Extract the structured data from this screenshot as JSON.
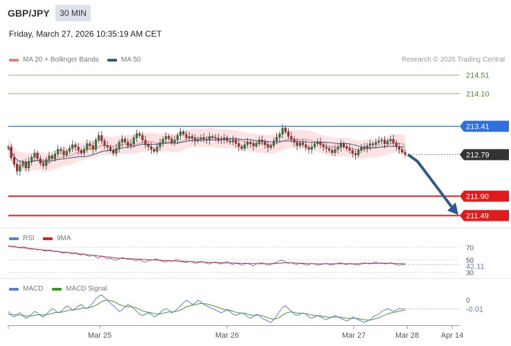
{
  "header": {
    "symbol": "GBP/JPY",
    "timeframe": "30 MIN",
    "datetime": "Friday, March 27, 2026 10:35:19 AM CET",
    "credit": "Research © 2026 Trading Central"
  },
  "colors": {
    "ma20": "#f27a7a",
    "bands_fill": "#fde3e3",
    "ma50": "#2e5b8f",
    "resistance_green": "#8dc66e",
    "level_blue": "#2f6fe0",
    "support_red": "#e01b1b",
    "current_price_bg": "#333333",
    "forecast_arrow": "#2e5b8f",
    "rsi": "#5b7fd6",
    "signal_ma": "#e02020",
    "macd": "#5b7fd6",
    "macd_signal": "#3c9a1a"
  },
  "chart_data": [
    {
      "type": "candlestick",
      "title": "GBP/JPY",
      "legend": [
        {
          "name": "MA 20 + Bollinger Bands",
          "color": "#f27a7a"
        },
        {
          "name": "MA 50",
          "color": "#2e5b8f"
        }
      ],
      "x_ticks": [
        "Mar 25",
        "Mar 26",
        "Mar 27",
        "Mar 28",
        "Apr 14"
      ],
      "ylim": [
        211.2,
        214.7
      ],
      "levels": [
        {
          "value": 214.51,
          "label": "214.51",
          "color": "#8dc66e",
          "style": "text"
        },
        {
          "value": 214.1,
          "label": "214.10",
          "color": "#8dc66e",
          "style": "text"
        },
        {
          "value": 213.41,
          "label": "213.41",
          "color": "#2f6fe0",
          "style": "tag"
        },
        {
          "value": 212.79,
          "label": "212.79",
          "color": "#333333",
          "style": "tag"
        },
        {
          "value": 211.9,
          "label": "211.90",
          "color": "#e01b1b",
          "style": "tag"
        },
        {
          "value": 211.49,
          "label": "211.49",
          "color": "#e01b1b",
          "style": "tag"
        }
      ],
      "current_price": 212.79,
      "forecast": [
        212.79,
        211.49
      ],
      "closes": [
        212.95,
        212.72,
        212.58,
        212.43,
        212.55,
        212.62,
        212.5,
        212.64,
        212.73,
        212.82,
        212.7,
        212.6,
        212.55,
        212.68,
        212.76,
        212.7,
        212.8,
        212.9,
        212.87,
        212.78,
        212.86,
        212.92,
        213.0,
        212.95,
        212.88,
        212.82,
        212.9,
        213.02,
        212.98,
        212.9,
        213.1,
        213.2,
        213.08,
        212.98,
        212.95,
        212.88,
        212.82,
        212.92,
        213.05,
        213.12,
        213.06,
        212.98,
        213.02,
        213.15,
        213.24,
        213.2,
        213.1,
        213.0,
        212.96,
        212.9,
        212.86,
        212.95,
        213.04,
        213.12,
        213.18,
        213.13,
        213.05,
        213.1,
        213.2,
        213.28,
        213.23,
        213.15,
        213.18,
        213.14,
        213.08,
        213.12,
        213.15,
        213.12,
        213.1,
        213.18,
        213.16,
        213.14,
        213.1,
        213.12,
        213.15,
        213.08,
        213.06,
        213.1,
        213.03,
        212.96,
        212.92,
        213.0,
        213.05,
        213.02,
        212.97,
        213.03,
        213.1,
        213.06,
        213.0,
        212.94,
        212.98,
        213.08,
        213.16,
        213.23,
        213.36,
        213.28,
        213.18,
        213.12,
        213.05,
        212.98,
        213.04,
        213.0,
        212.94,
        212.9,
        212.95,
        213.02,
        213.06,
        213.0,
        212.95,
        212.92,
        212.88,
        212.83,
        212.9,
        212.95,
        213.02,
        212.96,
        212.92,
        212.88,
        212.81,
        212.78,
        212.88,
        212.94,
        212.92,
        212.98,
        213.02,
        213.0,
        213.05,
        213.08,
        213.1,
        213.02,
        213.08,
        213.12,
        213.04,
        212.96,
        212.9,
        212.84,
        212.79
      ],
      "yaxis_unit": "JPY"
    },
    {
      "type": "line",
      "title": "RSI",
      "series": [
        {
          "name": "RSI",
          "color": "#5b7fd6"
        },
        {
          "name": "9MA",
          "color": "#e02020"
        }
      ],
      "ticks": [
        "70",
        "50",
        "30"
      ],
      "last_value": 42.11,
      "rsi_values": [
        72,
        70,
        71,
        69,
        68,
        70,
        69,
        67,
        66,
        67,
        65,
        66,
        64,
        63,
        65,
        64,
        62,
        63,
        61,
        60,
        62,
        60,
        59,
        61,
        58,
        57,
        59,
        56,
        55,
        57,
        54,
        52,
        56,
        53,
        51,
        52,
        50,
        49,
        51,
        53,
        52,
        50,
        51,
        49,
        48,
        50,
        47,
        46,
        48,
        49,
        50,
        51,
        48,
        47,
        46,
        48,
        47,
        49,
        50,
        47,
        46,
        45,
        47,
        46,
        44,
        45,
        47,
        46,
        44,
        43,
        45,
        46,
        44,
        43,
        45,
        47,
        44,
        42,
        44,
        43,
        41,
        43,
        44,
        42,
        40,
        43,
        44,
        45,
        43,
        41,
        42,
        44,
        46,
        48,
        49,
        46,
        44,
        45,
        43,
        42,
        44,
        43,
        41,
        42,
        44,
        43,
        41,
        42,
        43,
        44,
        42,
        41,
        43,
        44,
        45,
        43,
        42,
        44,
        43,
        42,
        41,
        43,
        45,
        44,
        43,
        45,
        46,
        44,
        45,
        43,
        44,
        45,
        43,
        42,
        41,
        42,
        42.11
      ],
      "ma_values": [
        71,
        70.5,
        70,
        69.5,
        69,
        68.5,
        68,
        67.5,
        67,
        66.5,
        66,
        65.5,
        65,
        64.5,
        64,
        63.5,
        63,
        62.5,
        62,
        61.5,
        61,
        60.5,
        60,
        59.5,
        59,
        58.5,
        58,
        57.5,
        57,
        56.5,
        56,
        55.5,
        55,
        54.5,
        54,
        53.5,
        53,
        52.5,
        52,
        51.8,
        51.6,
        51.4,
        51.2,
        51,
        50.8,
        50.5,
        50.2,
        49.9,
        49.6,
        49.4,
        49.2,
        49,
        48.8,
        48.6,
        48.4,
        48.2,
        48,
        47.8,
        47.6,
        47.4,
        47.2,
        47,
        46.8,
        46.6,
        46.4,
        46.2,
        46,
        45.8,
        45.6,
        45.4,
        45.2,
        45,
        44.9,
        44.8,
        44.7,
        44.6,
        44.5,
        44.4,
        44.3,
        44.2,
        44.1,
        44,
        43.9,
        43.8,
        43.7,
        43.6,
        43.5,
        43.5,
        43.5,
        43.5,
        43.6,
        43.8,
        44,
        44.3,
        44.6,
        44.8,
        44.9,
        44.8,
        44.6,
        44.4,
        44.2,
        44,
        43.8,
        43.6,
        43.5,
        43.4,
        43.3,
        43.2,
        43.2,
        43.2,
        43.3,
        43.4,
        43.4,
        43.5,
        43.5,
        43.4,
        43.3,
        43.2,
        43.2,
        43.3,
        43.5,
        43.7,
        43.8,
        43.9,
        44,
        44.1,
        44.2,
        44.2,
        44.2,
        44.2,
        44.1,
        44,
        43.9,
        43.8,
        43.7,
        43.6,
        43.5
      ]
    },
    {
      "type": "line",
      "title": "MACD",
      "series": [
        {
          "name": "MACD",
          "color": "#5b7fd6"
        },
        {
          "name": "MACD Signal",
          "color": "#3c9a1a"
        }
      ],
      "ticks": [
        "0"
      ],
      "last_value": -0.01,
      "last_label": "-0.01",
      "macd_values": [
        -0.02,
        -0.035,
        -0.04,
        -0.03,
        -0.025,
        -0.035,
        -0.045,
        -0.04,
        -0.03,
        -0.02,
        -0.025,
        -0.035,
        -0.04,
        -0.03,
        -0.02,
        -0.01,
        -0.015,
        -0.025,
        -0.02,
        -0.01,
        0.0,
        -0.005,
        -0.015,
        -0.01,
        0.0,
        0.005,
        -0.005,
        -0.01,
        0.0,
        0.01,
        0.025,
        0.035,
        0.04,
        0.03,
        0.02,
        0.01,
        0.0,
        -0.01,
        -0.02,
        -0.015,
        -0.005,
        0.005,
        0.0,
        -0.01,
        -0.02,
        -0.03,
        -0.035,
        -0.03,
        -0.025,
        -0.03,
        -0.04,
        -0.035,
        -0.025,
        -0.015,
        -0.01,
        -0.015,
        -0.025,
        -0.02,
        -0.01,
        0.0,
        0.01,
        0.02,
        0.015,
        0.005,
        0.01,
        0.02,
        0.015,
        0.005,
        0.0,
        -0.005,
        -0.01,
        -0.015,
        -0.02,
        -0.025,
        -0.02,
        -0.015,
        -0.02,
        -0.03,
        -0.035,
        -0.03,
        -0.025,
        -0.03,
        -0.04,
        -0.045,
        -0.04,
        -0.03,
        -0.035,
        -0.045,
        -0.05,
        -0.055,
        -0.06,
        -0.05,
        -0.035,
        -0.02,
        -0.005,
        0.0,
        -0.01,
        -0.02,
        -0.03,
        -0.035,
        -0.03,
        -0.025,
        -0.03,
        -0.04,
        -0.045,
        -0.04,
        -0.035,
        -0.04,
        -0.045,
        -0.05,
        -0.045,
        -0.04,
        -0.035,
        -0.04,
        -0.045,
        -0.05,
        -0.055,
        -0.05,
        -0.04,
        -0.045,
        -0.05,
        -0.055,
        -0.06,
        -0.055,
        -0.05,
        -0.04,
        -0.035,
        -0.03,
        -0.02,
        -0.015,
        -0.01,
        -0.015,
        -0.02,
        -0.015,
        -0.01,
        -0.01,
        -0.01
      ],
      "signal_values": [
        -0.03,
        -0.03,
        -0.032,
        -0.033,
        -0.033,
        -0.034,
        -0.036,
        -0.037,
        -0.036,
        -0.034,
        -0.032,
        -0.032,
        -0.033,
        -0.032,
        -0.03,
        -0.027,
        -0.024,
        -0.024,
        -0.023,
        -0.021,
        -0.018,
        -0.015,
        -0.015,
        -0.014,
        -0.012,
        -0.009,
        -0.008,
        -0.008,
        -0.006,
        -0.003,
        0.002,
        0.008,
        0.015,
        0.019,
        0.021,
        0.019,
        0.016,
        0.011,
        0.005,
        0.001,
        -0.002,
        -0.003,
        -0.003,
        -0.005,
        -0.008,
        -0.013,
        -0.018,
        -0.021,
        -0.023,
        -0.025,
        -0.028,
        -0.03,
        -0.029,
        -0.027,
        -0.024,
        -0.022,
        -0.022,
        -0.021,
        -0.019,
        -0.015,
        -0.01,
        -0.004,
        0.0,
        0.002,
        0.004,
        0.007,
        0.009,
        0.008,
        0.007,
        0.004,
        0.001,
        -0.002,
        -0.006,
        -0.01,
        -0.013,
        -0.014,
        -0.016,
        -0.019,
        -0.023,
        -0.025,
        -0.026,
        -0.027,
        -0.03,
        -0.033,
        -0.035,
        -0.034,
        -0.034,
        -0.036,
        -0.039,
        -0.043,
        -0.047,
        -0.048,
        -0.046,
        -0.041,
        -0.034,
        -0.027,
        -0.023,
        -0.022,
        -0.023,
        -0.026,
        -0.027,
        -0.027,
        -0.028,
        -0.03,
        -0.033,
        -0.035,
        -0.035,
        -0.036,
        -0.038,
        -0.04,
        -0.041,
        -0.041,
        -0.04,
        -0.04,
        -0.041,
        -0.043,
        -0.045,
        -0.046,
        -0.045,
        -0.045,
        -0.046,
        -0.048,
        -0.05,
        -0.051,
        -0.051,
        -0.049,
        -0.046,
        -0.043,
        -0.038,
        -0.034,
        -0.029,
        -0.026,
        -0.024,
        -0.022,
        -0.019,
        -0.017,
        -0.015
      ]
    }
  ]
}
